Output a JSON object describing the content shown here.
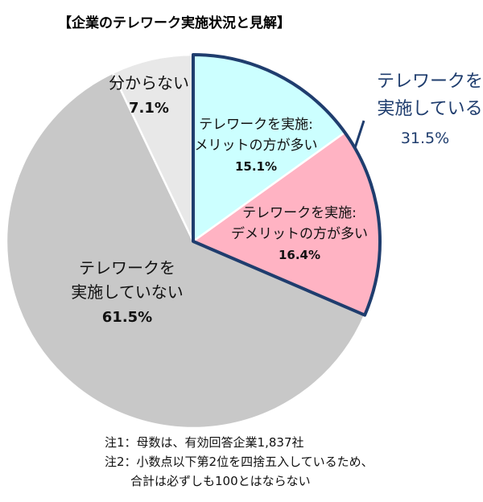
{
  "chart_data": {
    "type": "pie",
    "title": "【企業のテレワーク実施状況と見解】",
    "slices": [
      {
        "label_lines": [
          "テレワークを実施:",
          "メリットの方が多い"
        ],
        "value": 15.1,
        "value_text": "15.1%",
        "color": "#ccffff"
      },
      {
        "label_lines": [
          "テレワークを実施:",
          "デメリットの方が多い"
        ],
        "value": 16.4,
        "value_text": "16.4%",
        "color": "#ffb3c3"
      },
      {
        "label_lines": [
          "テレワークを",
          "実施していない"
        ],
        "value": 61.5,
        "value_text": "61.5%",
        "color": "#c8c8c8"
      },
      {
        "label_lines": [
          "分からない"
        ],
        "value": 7.1,
        "value_text": "7.1%",
        "color": "#e8e8e8"
      }
    ],
    "group_label": {
      "lines": [
        "テレワークを",
        "実施している"
      ],
      "value_text": "31.5%",
      "color": "#1f3d6e"
    }
  },
  "notes": [
    "注1：母数は、有効回答企業1,837社",
    "注2：小数点以下第2位を四捨五入しているため、",
    "合計は必ずしも100とはならない"
  ]
}
